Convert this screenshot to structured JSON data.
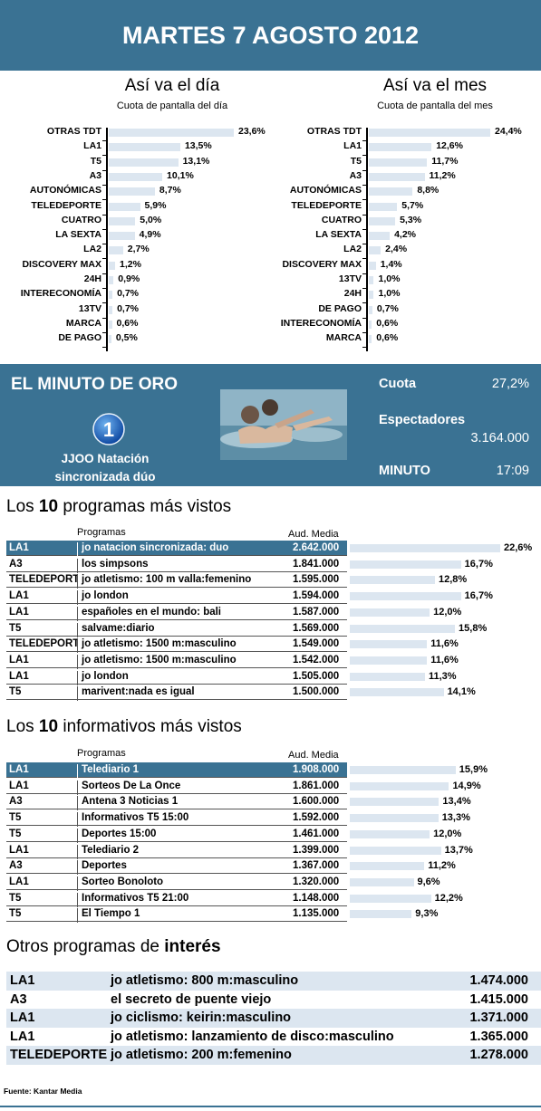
{
  "header": {
    "title": "MARTES 7 AGOSTO 2012"
  },
  "chart_data": [
    {
      "type": "bar",
      "title": "Así va el día",
      "subtitle": "Cuota de pantalla del día",
      "categories": [
        "OTRAS TDT",
        "LA1",
        "T5",
        "A3",
        "AUTONÓMICAS",
        "TELEDEPORTE",
        "CUATRO",
        "LA SEXTA",
        "LA2",
        "DISCOVERY MAX",
        "24H",
        "INTERECONOMÍA",
        "13TV",
        "MARCA",
        "DE PAGO"
      ],
      "values": [
        23.6,
        13.5,
        13.1,
        10.1,
        8.7,
        5.9,
        5.0,
        4.9,
        2.7,
        1.2,
        0.9,
        0.7,
        0.7,
        0.6,
        0.5
      ],
      "labels": [
        "23,6%",
        "13,5%",
        "13,1%",
        "10,1%",
        "8,7%",
        "5,9%",
        "5,0%",
        "4,9%",
        "2,7%",
        "1,2%",
        "0,9%",
        "0,7%",
        "0,7%",
        "0,6%",
        "0,5%"
      ]
    },
    {
      "type": "bar",
      "title": "Así va el mes",
      "subtitle": "Cuota de pantalla del mes",
      "categories": [
        "OTRAS TDT",
        "LA1",
        "T5",
        "A3",
        "AUTONÓMICAS",
        "TELEDEPORTE",
        "CUATRO",
        "LA SEXTA",
        "LA2",
        "DISCOVERY MAX",
        "13TV",
        "24H",
        "DE PAGO",
        "INTERECONOMÍA",
        "MARCA"
      ],
      "values": [
        24.4,
        12.6,
        11.7,
        11.2,
        8.8,
        5.7,
        5.3,
        4.2,
        2.4,
        1.4,
        1.0,
        1.0,
        0.7,
        0.6,
        0.6
      ],
      "labels": [
        "24,4%",
        "12,6%",
        "11,7%",
        "11,2%",
        "8,8%",
        "5,7%",
        "5,3%",
        "4,2%",
        "2,4%",
        "1,4%",
        "1,0%",
        "1,0%",
        "0,7%",
        "0,6%",
        "0,6%"
      ]
    },
    {
      "type": "table",
      "title": "Los 10 programas más vistos",
      "columns": [
        "",
        "Programas",
        "Aud. Media",
        ""
      ],
      "rows": [
        {
          "channel": "LA1",
          "program": "jo natacion sincronizada: duo",
          "audience": "2.642.000",
          "share": 22.6,
          "share_label": "22,6%"
        },
        {
          "channel": "A3",
          "program": "los simpsons",
          "audience": "1.841.000",
          "share": 16.7,
          "share_label": "16,7%"
        },
        {
          "channel": "TELEDEPORTE",
          "program": "jo atletismo: 100 m valla:femenino",
          "audience": "1.595.000",
          "share": 12.8,
          "share_label": "12,8%"
        },
        {
          "channel": "LA1",
          "program": "jo london",
          "audience": "1.594.000",
          "share": 16.7,
          "share_label": "16,7%"
        },
        {
          "channel": "LA1",
          "program": "españoles en el mundo: bali",
          "audience": "1.587.000",
          "share": 12.0,
          "share_label": "12,0%"
        },
        {
          "channel": "T5",
          "program": "salvame:diario",
          "audience": "1.569.000",
          "share": 15.8,
          "share_label": "15,8%"
        },
        {
          "channel": "TELEDEPORTE",
          "program": "jo atletismo: 1500 m:masculino",
          "audience": "1.549.000",
          "share": 11.6,
          "share_label": "11,6%"
        },
        {
          "channel": "LA1",
          "program": "jo atletismo: 1500 m:masculino",
          "audience": "1.542.000",
          "share": 11.6,
          "share_label": "11,6%"
        },
        {
          "channel": "LA1",
          "program": "jo london",
          "audience": "1.505.000",
          "share": 11.3,
          "share_label": "11,3%"
        },
        {
          "channel": "T5",
          "program": "marivent:nada es igual",
          "audience": "1.500.000",
          "share": 14.1,
          "share_label": "14,1%"
        }
      ]
    },
    {
      "type": "table",
      "title": "Los 10 informativos más vistos",
      "columns": [
        "",
        "Programas",
        "Aud. Media",
        ""
      ],
      "rows": [
        {
          "channel": "LA1",
          "program": "Telediario 1",
          "audience": "1.908.000",
          "share": 15.9,
          "share_label": "15,9%"
        },
        {
          "channel": "LA1",
          "program": "Sorteos De La Once",
          "audience": "1.861.000",
          "share": 14.9,
          "share_label": "14,9%"
        },
        {
          "channel": "A3",
          "program": "Antena 3 Noticias 1",
          "audience": "1.600.000",
          "share": 13.4,
          "share_label": "13,4%"
        },
        {
          "channel": "T5",
          "program": "Informativos T5 15:00",
          "audience": "1.592.000",
          "share": 13.3,
          "share_label": "13,3%"
        },
        {
          "channel": "T5",
          "program": "Deportes 15:00",
          "audience": "1.461.000",
          "share": 12.0,
          "share_label": "12,0%"
        },
        {
          "channel": "LA1",
          "program": "Telediario 2",
          "audience": "1.399.000",
          "share": 13.7,
          "share_label": "13,7%"
        },
        {
          "channel": "A3",
          "program": "Deportes",
          "audience": "1.367.000",
          "share": 11.2,
          "share_label": "11,2%"
        },
        {
          "channel": "LA1",
          "program": "Sorteo Bonoloto",
          "audience": "1.320.000",
          "share": 9.6,
          "share_label": "9,6%"
        },
        {
          "channel": "T5",
          "program": "Informativos T5 21:00",
          "audience": "1.148.000",
          "share": 12.2,
          "share_label": "12,2%"
        },
        {
          "channel": "T5",
          "program": "El Tiempo 1",
          "audience": "1.135.000",
          "share": 9.3,
          "share_label": "9,3%"
        }
      ]
    }
  ],
  "minuto_oro": {
    "title": "EL MINUTO DE ORO",
    "logo_text": "1",
    "program_line1": "JJOO Natación",
    "program_line2": "sincronizada dúo",
    "cuota_label": "Cuota",
    "cuota_value": "27,2%",
    "espectadores_label": "Espectadores",
    "espectadores_value": "3.164.000",
    "minuto_label": "MINUTO",
    "minuto_value": "17:09"
  },
  "top_programs": {
    "title_pre": "Los ",
    "title_num": "10",
    "title_post": " programas más vistos",
    "col_programs": "Programas",
    "col_aud": "Aud. Media"
  },
  "top_news": {
    "title_pre": "Los ",
    "title_num": "10",
    "title_post": " informativos más vistos",
    "col_programs": "Programas",
    "col_aud": "Aud. Media"
  },
  "others": {
    "title_pre": "Otros programas de ",
    "title_bold": "interés",
    "rows": [
      {
        "channel": "LA1",
        "program": "jo atletismo: 800 m:masculino",
        "audience": "1.474.000"
      },
      {
        "channel": "A3",
        "program": "el secreto de puente viejo",
        "audience": "1.415.000"
      },
      {
        "channel": "LA1",
        "program": "jo ciclismo: keirin:masculino",
        "audience": "1.371.000"
      },
      {
        "channel": "LA1",
        "program": "jo atletismo: lanzamiento de disco:masculino",
        "audience": "1.365.000"
      },
      {
        "channel": "TELEDEPORTE",
        "program": "jo atletismo: 200 m:femenino",
        "audience": "1.278.000"
      }
    ]
  },
  "source": "Fuente:  Kantar Media",
  "colors": {
    "accent": "#3a7293",
    "bar": "#dce6f0",
    "logo": "#1565c0"
  }
}
